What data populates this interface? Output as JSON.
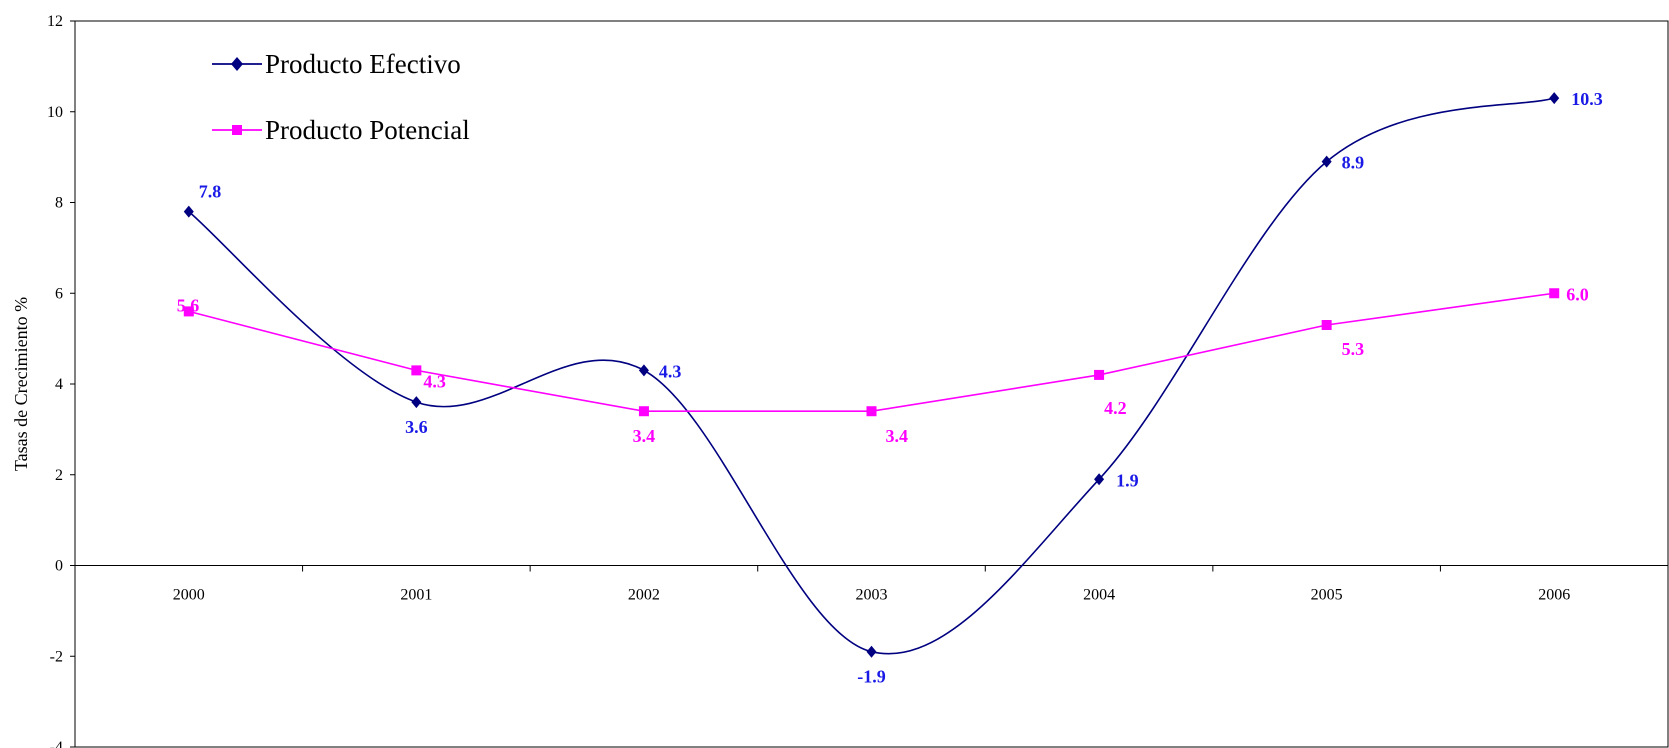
{
  "chart_data": {
    "type": "line",
    "title": "",
    "xlabel": "",
    "ylabel": "Tasas de Crecimiento %",
    "categories": [
      "2000",
      "2001",
      "2002",
      "2003",
      "2004",
      "2005",
      "2006"
    ],
    "ylim": [
      -4,
      12
    ],
    "yticks": [
      "-4",
      "-2",
      "0",
      "2",
      "4",
      "6",
      "8",
      "10",
      "12"
    ],
    "grid": false,
    "legend_position": "top-left",
    "series": [
      {
        "name": "Producto Efectivo",
        "values": [
          7.8,
          3.6,
          4.3,
          -1.9,
          1.9,
          8.9,
          10.3
        ],
        "labels": [
          "7.8",
          "3.6",
          "4.3",
          "-1.9",
          "1.9",
          "8.9",
          "10.3"
        ],
        "color": "#000080",
        "label_color": "#1a1ae6",
        "marker": "diamond",
        "smooth": true
      },
      {
        "name": "Producto Potencial",
        "values": [
          5.6,
          4.3,
          3.4,
          3.4,
          4.2,
          5.3,
          6.0
        ],
        "labels": [
          "5.6",
          "4.3",
          "3.4",
          "3.4",
          "4.2",
          "5.3",
          "6.0"
        ],
        "color": "#ff00ff",
        "label_color": "#ff00ff",
        "marker": "square",
        "smooth": false
      }
    ]
  }
}
